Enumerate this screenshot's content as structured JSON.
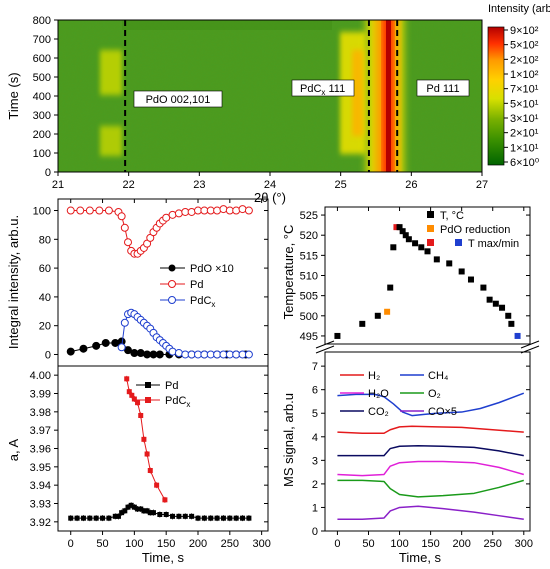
{
  "chart_data": [
    {
      "type": "heatmap",
      "xlabel": "2θ (°)",
      "ylabel": "Time (s)",
      "xlim": [
        21,
        27
      ],
      "ylim": [
        0,
        800
      ],
      "xticks": [
        "21",
        "22",
        "23",
        "24",
        "25",
        "26",
        "27"
      ],
      "yticks": [
        "0",
        "100",
        "200",
        "300",
        "400",
        "500",
        "600",
        "700",
        "800"
      ],
      "colorbar_title": "Intensity (arb.u.)",
      "colorbar_labels": [
        "9×10²",
        "5×10²",
        "2×10²",
        "1×10²",
        "7×10¹",
        "5×10¹",
        "3×10¹",
        "2×10¹",
        "1×10¹",
        "6×10⁰"
      ],
      "colorbar_colors": [
        "#b30000",
        "#ff0000",
        "#ff5a00",
        "#ff9a00",
        "#ffd000",
        "#e8e000",
        "#b0cc00",
        "#78b000",
        "#3a9000",
        "#006400"
      ],
      "annotations": [
        {
          "text": "PdO 002,101",
          "x": 21.95
        },
        {
          "text": "PdCx 111",
          "x": 25.4
        },
        {
          "text": "Pd 111",
          "x": 25.8
        }
      ],
      "peaks": [
        {
          "name": "PdO",
          "center": 21.8,
          "t_start": 180,
          "t_end": 620
        },
        {
          "name": "PdCx",
          "center": 25.3,
          "t_start": 180,
          "t_end": 620
        },
        {
          "name": "Pd",
          "center": 25.8
        }
      ]
    },
    {
      "type": "line",
      "ylabel": "Integral intensity, arb.u.",
      "xlim": [
        -20,
        310
      ],
      "ylim": [
        -8,
        108
      ],
      "yticks": [
        0,
        20,
        40,
        60,
        80,
        100
      ],
      "series": [
        {
          "name": "PdO ×10",
          "color": "#000000",
          "marker": "filled-circle",
          "x": [
            0,
            20,
            40,
            55,
            70,
            80,
            90,
            100,
            110,
            120,
            130,
            140,
            155,
            170,
            190,
            210,
            230,
            245,
            260,
            275
          ],
          "y": [
            2,
            4,
            6,
            8,
            8,
            9,
            3,
            1,
            1,
            0,
            0,
            0,
            0,
            0,
            0,
            0,
            0,
            0,
            0,
            0
          ]
        },
        {
          "name": "Pd",
          "color": "#e41a1c",
          "marker": "open-circle",
          "x": [
            0,
            15,
            30,
            45,
            60,
            75,
            80,
            85,
            90,
            95,
            100,
            105,
            110,
            115,
            120,
            125,
            130,
            135,
            140,
            145,
            150,
            160,
            170,
            180,
            190,
            200,
            210,
            220,
            230,
            240,
            250,
            260,
            270,
            280
          ],
          "y": [
            100,
            100,
            100,
            100,
            100,
            99,
            96,
            88,
            78,
            72,
            70,
            70,
            72,
            74,
            77,
            81,
            85,
            88,
            91,
            93,
            95,
            97,
            98,
            99,
            99,
            100,
            100,
            100,
            100,
            101,
            100,
            100,
            101,
            100
          ]
        },
        {
          "name": "PdCx",
          "color": "#1f3fcf",
          "marker": "open-circle",
          "x": [
            80,
            85,
            90,
            95,
            100,
            105,
            110,
            115,
            120,
            125,
            130,
            135,
            140,
            145,
            150,
            155,
            160,
            170,
            180,
            190,
            200,
            210,
            220,
            230,
            240,
            250,
            260,
            270,
            280
          ],
          "y": [
            5,
            22,
            28,
            29,
            28,
            26,
            24,
            22,
            20,
            18,
            15,
            12,
            10,
            8,
            6,
            4,
            2,
            1,
            0,
            0,
            0,
            0,
            0,
            0,
            0,
            0,
            0,
            0,
            0
          ]
        }
      ]
    },
    {
      "type": "line",
      "xlabel": "Time, s",
      "ylabel": "a, A",
      "xlim": [
        -20,
        310
      ],
      "ylim": [
        3.915,
        4.005
      ],
      "xticks": [
        0,
        50,
        100,
        150,
        200,
        250,
        300
      ],
      "yticks": [
        "3.92",
        "3.93",
        "3.94",
        "3.95",
        "3.96",
        "3.97",
        "3.98",
        "3.99",
        "4.00"
      ],
      "series": [
        {
          "name": "Pd",
          "color": "#000000",
          "marker": "filled-square",
          "x": [
            0,
            10,
            20,
            30,
            40,
            50,
            60,
            70,
            75,
            80,
            85,
            90,
            95,
            100,
            105,
            110,
            115,
            120,
            125,
            130,
            140,
            150,
            160,
            170,
            180,
            190,
            200,
            210,
            220,
            230,
            240,
            250,
            260,
            270,
            280
          ],
          "y": [
            3.922,
            3.922,
            3.922,
            3.922,
            3.922,
            3.922,
            3.922,
            3.923,
            3.923,
            3.925,
            3.926,
            3.928,
            3.929,
            3.928,
            3.927,
            3.927,
            3.926,
            3.926,
            3.925,
            3.925,
            3.924,
            3.924,
            3.923,
            3.923,
            3.923,
            3.923,
            3.922,
            3.922,
            3.922,
            3.922,
            3.922,
            3.922,
            3.922,
            3.922,
            3.922
          ]
        },
        {
          "name": "PdCx",
          "color": "#e41a1c",
          "marker": "filled-square",
          "x": [
            88,
            92,
            96,
            100,
            105,
            110,
            115,
            120,
            125,
            135,
            148
          ],
          "y": [
            3.998,
            3.991,
            3.989,
            3.987,
            3.985,
            3.978,
            3.965,
            3.957,
            3.948,
            3.94,
            3.932
          ]
        }
      ]
    },
    {
      "type": "scatter",
      "ylabel": "Temperature, °C",
      "ylim": [
        493,
        527
      ],
      "yticks": [
        495,
        500,
        505,
        510,
        515,
        520,
        525
      ],
      "legend": [
        {
          "name": "T, °C",
          "color": "#000000"
        },
        {
          "name": "PdO reduction",
          "color": "#ff8c00"
        },
        {
          "name": "T max/min",
          "color": "#e41a1c"
        },
        {
          "name": "T max/min",
          "color": "#1f3fcf"
        }
      ],
      "points": [
        {
          "x": 0,
          "y": 495,
          "c": "#000000"
        },
        {
          "x": 40,
          "y": 498,
          "c": "#000000"
        },
        {
          "x": 65,
          "y": 500,
          "c": "#000000"
        },
        {
          "x": 80,
          "y": 501,
          "c": "#ff8c00"
        },
        {
          "x": 85,
          "y": 507,
          "c": "#000000"
        },
        {
          "x": 90,
          "y": 517,
          "c": "#000000"
        },
        {
          "x": 95,
          "y": 522,
          "c": "#e41a1c"
        },
        {
          "x": 100,
          "y": 522,
          "c": "#000000"
        },
        {
          "x": 105,
          "y": 521,
          "c": "#000000"
        },
        {
          "x": 110,
          "y": 520,
          "c": "#000000"
        },
        {
          "x": 115,
          "y": 519,
          "c": "#000000"
        },
        {
          "x": 125,
          "y": 518,
          "c": "#000000"
        },
        {
          "x": 135,
          "y": 517,
          "c": "#000000"
        },
        {
          "x": 145,
          "y": 516,
          "c": "#000000"
        },
        {
          "x": 160,
          "y": 514,
          "c": "#000000"
        },
        {
          "x": 180,
          "y": 513,
          "c": "#000000"
        },
        {
          "x": 200,
          "y": 511,
          "c": "#000000"
        },
        {
          "x": 215,
          "y": 509,
          "c": "#000000"
        },
        {
          "x": 235,
          "y": 507,
          "c": "#000000"
        },
        {
          "x": 245,
          "y": 504,
          "c": "#000000"
        },
        {
          "x": 255,
          "y": 503,
          "c": "#000000"
        },
        {
          "x": 265,
          "y": 502,
          "c": "#000000"
        },
        {
          "x": 275,
          "y": 500,
          "c": "#000000"
        },
        {
          "x": 280,
          "y": 498,
          "c": "#000000"
        },
        {
          "x": 290,
          "y": 495,
          "c": "#1f3fcf"
        }
      ]
    },
    {
      "type": "line",
      "xlabel": "Time, s",
      "ylabel": "MS signal, arb.u",
      "xlim": [
        -20,
        310
      ],
      "ylim": [
        0,
        7.6
      ],
      "xticks": [
        0,
        50,
        100,
        150,
        200,
        250,
        300
      ],
      "yticks": [
        0,
        1,
        2,
        3,
        4,
        5,
        6,
        7
      ],
      "legend": [
        {
          "name": "H₂",
          "color": "#e41a1c"
        },
        {
          "name": "CH₄",
          "color": "#1f3fcf"
        },
        {
          "name": "H₂O",
          "color": "#e020d8"
        },
        {
          "name": "O₂",
          "color": "#1a9a1a"
        },
        {
          "name": "CO₂",
          "color": "#0a0a60"
        },
        {
          "name": "CO×5",
          "color": "#8a20c8"
        }
      ],
      "series": [
        {
          "name": "CH₄",
          "color": "#1f3fcf",
          "x": [
            0,
            30,
            60,
            75,
            90,
            105,
            120,
            140,
            160,
            200,
            230,
            260,
            300
          ],
          "y": [
            5.75,
            5.8,
            5.8,
            5.7,
            5.4,
            5.05,
            4.9,
            4.95,
            5.0,
            5.05,
            5.2,
            5.45,
            5.85
          ]
        },
        {
          "name": "H₂",
          "color": "#e41a1c",
          "x": [
            0,
            40,
            75,
            85,
            100,
            120,
            160,
            200,
            250,
            300
          ],
          "y": [
            4.2,
            4.15,
            4.15,
            4.3,
            4.42,
            4.45,
            4.42,
            4.4,
            4.3,
            4.2
          ]
        },
        {
          "name": "CO₂",
          "color": "#0a0a60",
          "x": [
            0,
            40,
            75,
            85,
            100,
            130,
            170,
            220,
            260,
            300
          ],
          "y": [
            3.2,
            3.2,
            3.2,
            3.5,
            3.6,
            3.62,
            3.6,
            3.55,
            3.4,
            3.2
          ]
        },
        {
          "name": "H₂O",
          "color": "#e020d8",
          "x": [
            0,
            40,
            75,
            85,
            100,
            130,
            170,
            220,
            260,
            300
          ],
          "y": [
            2.4,
            2.35,
            2.4,
            2.75,
            2.9,
            2.95,
            2.95,
            2.9,
            2.7,
            2.4
          ]
        },
        {
          "name": "O₂",
          "color": "#1a9a1a",
          "x": [
            0,
            40,
            75,
            85,
            100,
            130,
            170,
            220,
            260,
            300
          ],
          "y": [
            2.15,
            2.15,
            2.1,
            1.8,
            1.55,
            1.45,
            1.5,
            1.6,
            1.85,
            2.15
          ]
        },
        {
          "name": "CO×5",
          "color": "#8a20c8",
          "x": [
            0,
            40,
            75,
            85,
            100,
            130,
            170,
            220,
            260,
            300
          ],
          "y": [
            0.5,
            0.5,
            0.55,
            0.85,
            1.0,
            1.05,
            0.95,
            0.8,
            0.65,
            0.5
          ]
        }
      ]
    }
  ]
}
